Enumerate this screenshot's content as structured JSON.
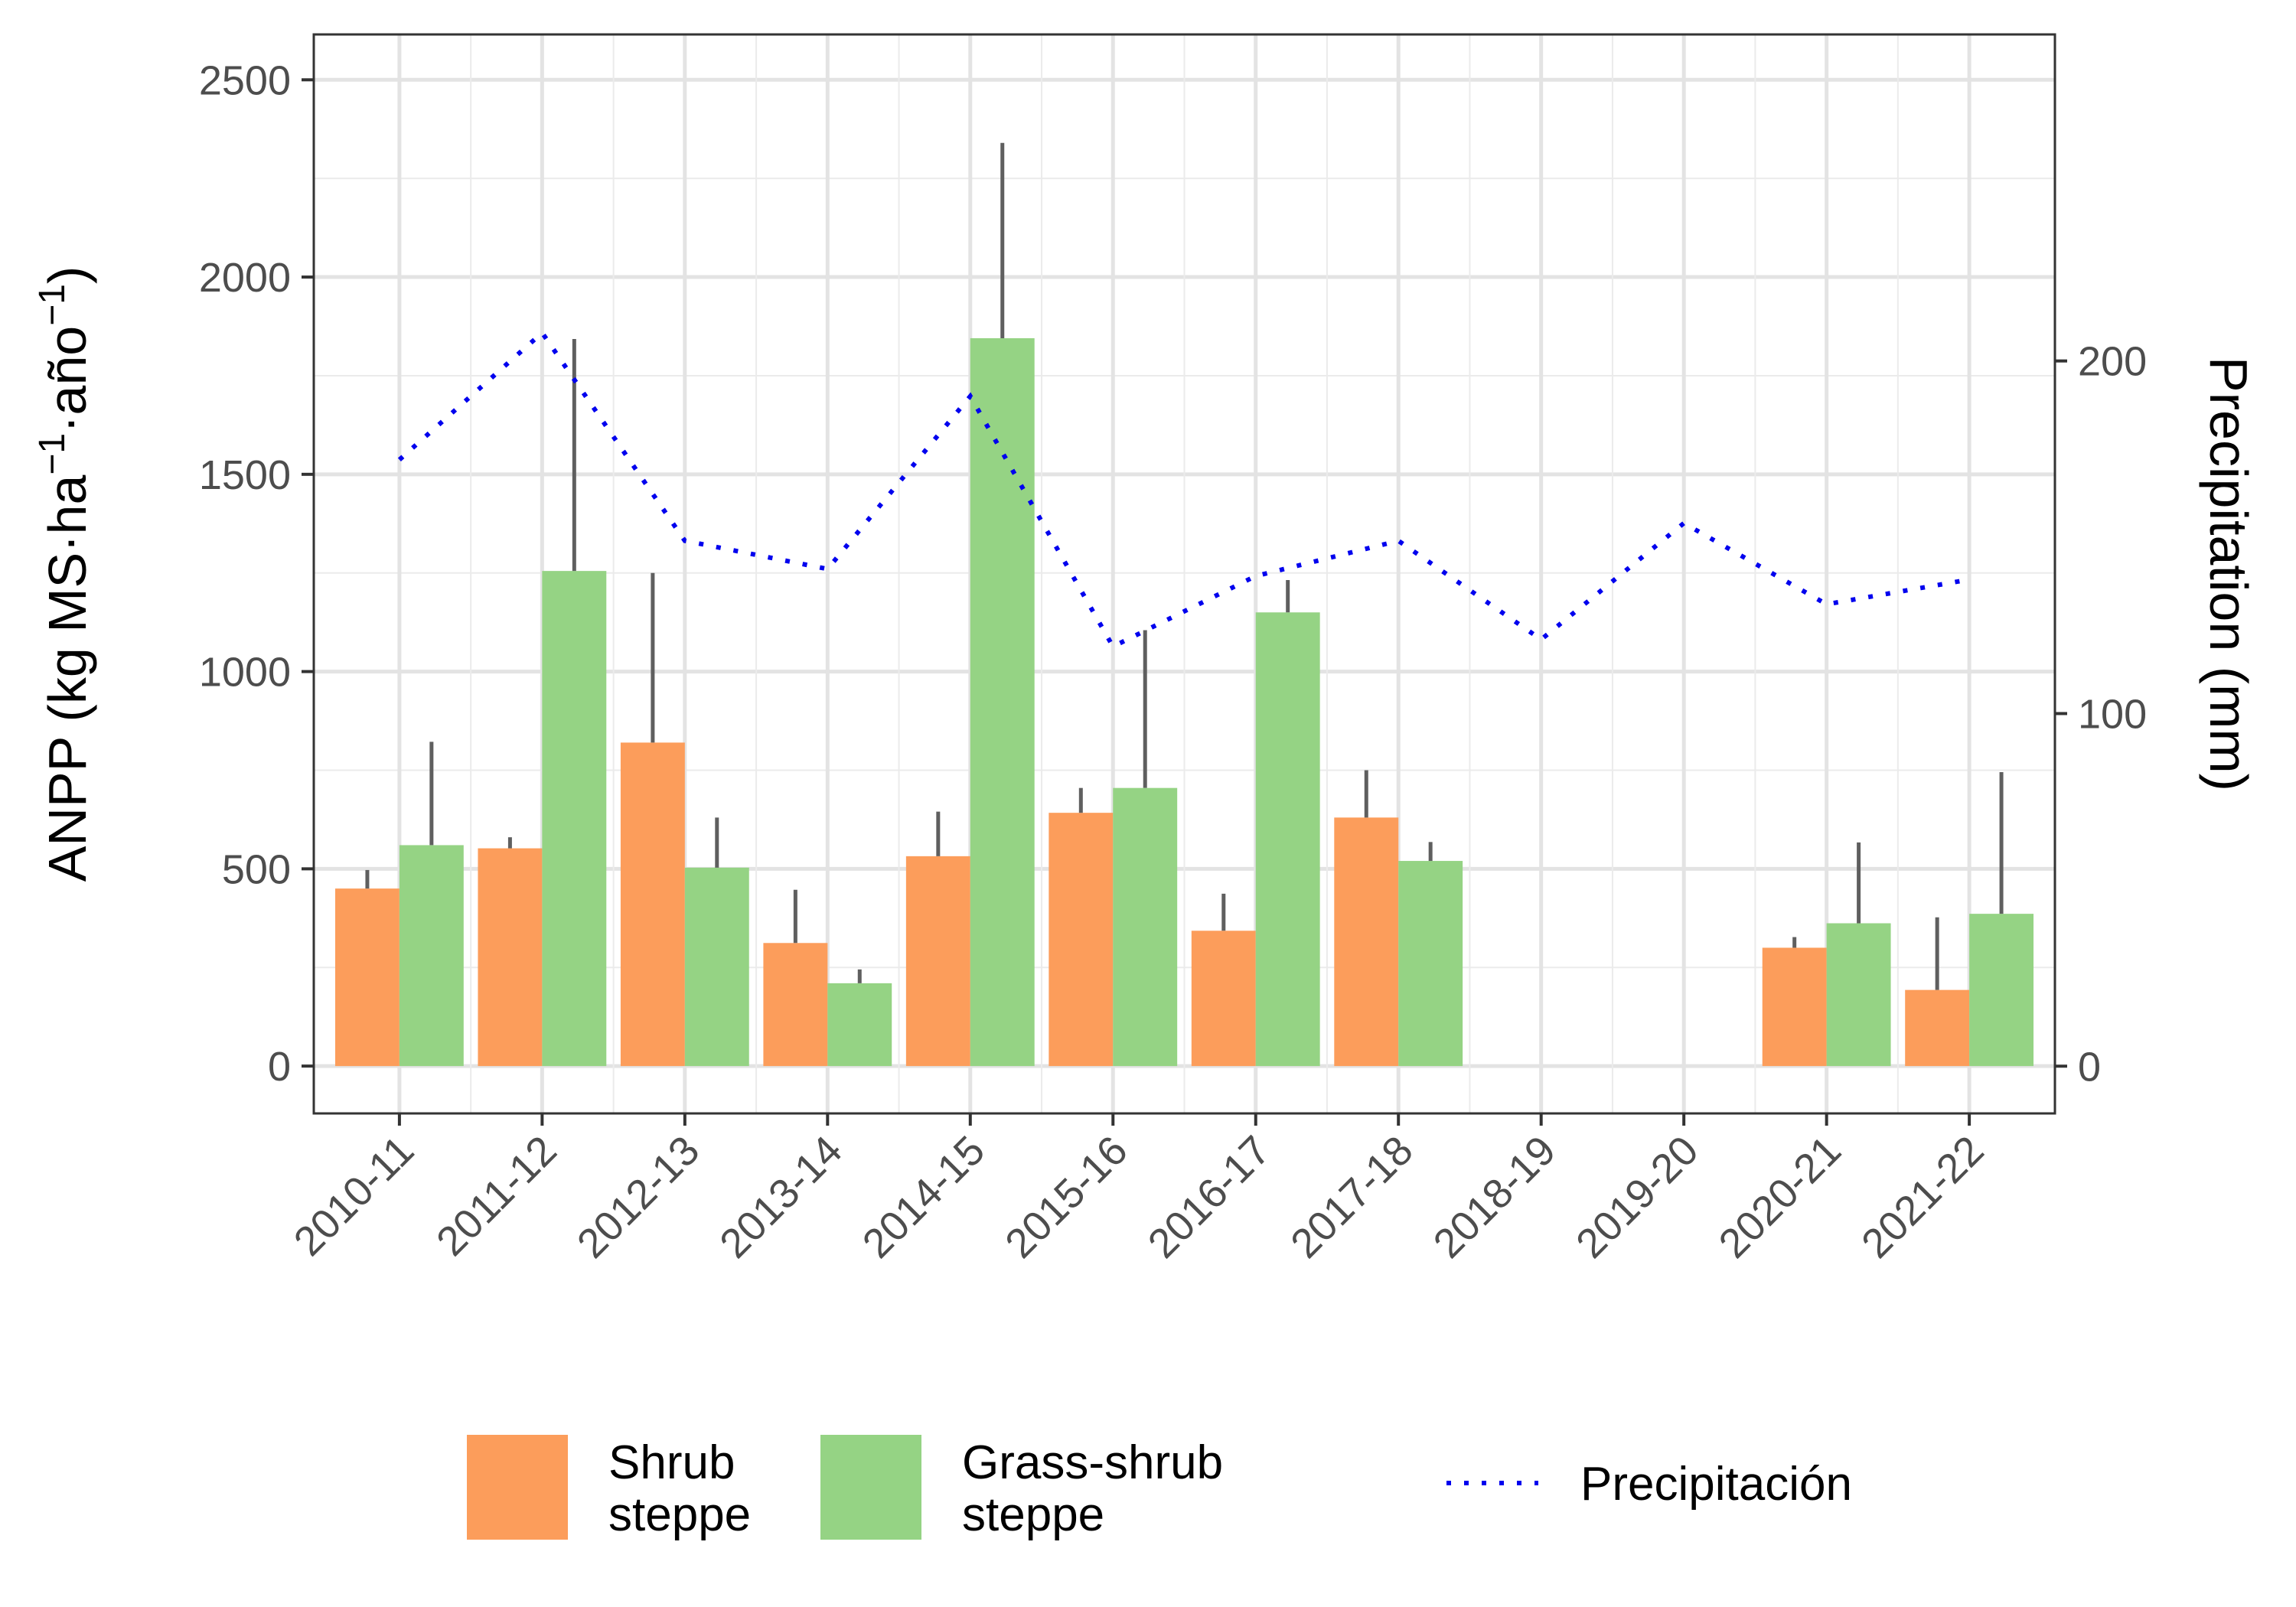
{
  "chart_data": {
    "type": "bar",
    "categories": [
      "2010-11",
      "2011-12",
      "2012-13",
      "2013-14",
      "2014-15",
      "2015-16",
      "2016-17",
      "2017-18",
      "2018-19",
      "2019-20",
      "2020-21",
      "2021-22"
    ],
    "series": [
      {
        "name": "Shrub steppe",
        "color": "#fc9d5b",
        "values": [
          450,
          552,
          820,
          312,
          532,
          642,
          343,
          630,
          null,
          null,
          300,
          193
        ],
        "error_upper": [
          497,
          580,
          1250,
          447,
          645,
          705,
          437,
          750,
          null,
          null,
          327,
          377
        ]
      },
      {
        "name": "Grass-shrub steppe",
        "color": "#95d384",
        "values": [
          560,
          1255,
          503,
          210,
          1845,
          705,
          1150,
          520,
          null,
          null,
          362,
          386
        ],
        "error_upper": [
          822,
          1843,
          630,
          245,
          2340,
          1105,
          1232,
          568,
          null,
          null,
          567,
          745
        ]
      }
    ],
    "line_series": {
      "name": "Precipitación",
      "color": "#0000ee",
      "axis": "right",
      "style": "dotted",
      "values": [
        172,
        208,
        149,
        141,
        190,
        119,
        139,
        149,
        121,
        154,
        131,
        138
      ]
    },
    "ylabel": "ANPP (kg MS·ha⁻¹·año⁻¹)",
    "ylabel_parts": {
      "a": "ANPP (kg MS·ha",
      "sup1": "−1",
      "b": "·año",
      "sup2": "−1",
      "c": ")"
    },
    "y2label": "Precipitation (mm)",
    "ylim": [
      -120,
      2615
    ],
    "y2lim": [
      -13.4,
      292.6
    ],
    "yticks": [
      0,
      500,
      1000,
      1500,
      2000,
      2500
    ],
    "y2ticks": [
      0,
      100,
      200
    ],
    "grid": true,
    "legend": "bottom",
    "legend_labels": {
      "shrub": [
        "Shrub",
        "steppe"
      ],
      "grass": [
        "Grass-shrub",
        "steppe"
      ],
      "precip": "Precipitación"
    }
  }
}
